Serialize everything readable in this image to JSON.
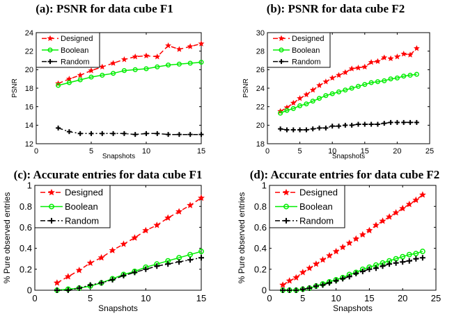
{
  "chart_data": [
    {
      "type": "line",
      "title": "(a): PSNR for data cube F1",
      "xlabel": "Snapshots",
      "ylabel": "PSNR",
      "xlim": [
        0,
        15
      ],
      "ylim": [
        12,
        24
      ],
      "xticks": [
        "0",
        "5",
        "10",
        "15"
      ],
      "yticks": [
        "12",
        "14",
        "16",
        "18",
        "20",
        "22",
        "24"
      ],
      "legend_position": "top-left",
      "grid": false,
      "x": [
        2,
        3,
        4,
        5,
        6,
        7,
        8,
        9,
        10,
        11,
        12,
        13,
        14,
        15
      ],
      "series": [
        {
          "name": "Designed",
          "color": "#ff0000",
          "marker": "star",
          "dash": "dashed",
          "values": [
            18.5,
            19.0,
            19.4,
            19.9,
            20.3,
            20.7,
            21.1,
            21.4,
            21.5,
            21.4,
            22.6,
            22.2,
            22.5,
            22.8
          ]
        },
        {
          "name": "Boolean",
          "color": "#00ee00",
          "marker": "circle",
          "dash": "solid",
          "values": [
            18.3,
            18.6,
            18.9,
            19.2,
            19.4,
            19.6,
            19.9,
            20.0,
            20.1,
            20.3,
            20.5,
            20.6,
            20.7,
            20.8
          ]
        },
        {
          "name": "Random",
          "color": "#000000",
          "marker": "plus",
          "dash": "dashdot",
          "values": [
            13.7,
            13.3,
            13.1,
            13.1,
            13.1,
            13.1,
            13.1,
            13.0,
            13.1,
            13.1,
            13.0,
            13.0,
            13.0,
            13.0
          ]
        }
      ]
    },
    {
      "type": "line",
      "title": "(b): PSNR for data cube F2",
      "xlabel": "Snapshots",
      "ylabel": "PSNR",
      "xlim": [
        0,
        25
      ],
      "ylim": [
        18,
        30
      ],
      "xticks": [
        "0",
        "5",
        "10",
        "15",
        "20",
        "25"
      ],
      "yticks": [
        "18",
        "20",
        "22",
        "24",
        "26",
        "28",
        "30"
      ],
      "legend_position": "top-left",
      "grid": false,
      "x": [
        2,
        3,
        4,
        5,
        6,
        7,
        8,
        9,
        10,
        11,
        12,
        13,
        14,
        15,
        16,
        17,
        18,
        19,
        20,
        21,
        22,
        23
      ],
      "series": [
        {
          "name": "Designed",
          "color": "#ff0000",
          "marker": "star",
          "dash": "dashed",
          "values": [
            21.5,
            21.9,
            22.4,
            22.9,
            23.3,
            23.8,
            24.3,
            24.7,
            25.1,
            25.4,
            25.7,
            26.1,
            26.2,
            26.3,
            26.8,
            26.9,
            27.3,
            27.2,
            27.4,
            27.7,
            27.6,
            28.3
          ]
        },
        {
          "name": "Boolean",
          "color": "#00ee00",
          "marker": "circle",
          "dash": "solid",
          "values": [
            21.3,
            21.6,
            21.8,
            22.1,
            22.3,
            22.6,
            22.9,
            23.2,
            23.4,
            23.6,
            23.8,
            24.0,
            24.2,
            24.4,
            24.6,
            24.7,
            24.8,
            25.0,
            25.1,
            25.3,
            25.4,
            25.5
          ]
        },
        {
          "name": "Random",
          "color": "#000000",
          "marker": "plus",
          "dash": "dashdot",
          "values": [
            19.6,
            19.5,
            19.5,
            19.5,
            19.5,
            19.6,
            19.7,
            19.7,
            19.9,
            19.9,
            20.0,
            20.0,
            20.1,
            20.1,
            20.1,
            20.1,
            20.2,
            20.3,
            20.3,
            20.3,
            20.3,
            20.3
          ]
        }
      ]
    },
    {
      "type": "line",
      "title": "(c): Accurate entries for data cube F1",
      "xlabel": "Snapshots",
      "ylabel": "% Pure observed entries",
      "xlim": [
        0,
        15
      ],
      "ylim": [
        0,
        1
      ],
      "xticks": [
        "0",
        "5",
        "10",
        "15"
      ],
      "yticks": [
        "0",
        "0.2",
        "0.4",
        "0.6",
        "0.8",
        "1"
      ],
      "legend_position": "top-left",
      "grid": false,
      "x": [
        2,
        3,
        4,
        5,
        6,
        7,
        8,
        9,
        10,
        11,
        12,
        13,
        14,
        15
      ],
      "series": [
        {
          "name": "Designed",
          "color": "#ff0000",
          "marker": "star",
          "dash": "dashed",
          "values": [
            0.07,
            0.13,
            0.19,
            0.26,
            0.31,
            0.38,
            0.44,
            0.5,
            0.57,
            0.62,
            0.69,
            0.75,
            0.81,
            0.88
          ]
        },
        {
          "name": "Boolean",
          "color": "#00ee00",
          "marker": "circle",
          "dash": "solid",
          "values": [
            0.0,
            0.01,
            0.02,
            0.04,
            0.07,
            0.11,
            0.15,
            0.18,
            0.22,
            0.25,
            0.28,
            0.31,
            0.34,
            0.37
          ]
        },
        {
          "name": "Random",
          "color": "#000000",
          "marker": "plus",
          "dash": "dashdot",
          "values": [
            0.0,
            0.0,
            0.02,
            0.05,
            0.07,
            0.1,
            0.14,
            0.17,
            0.2,
            0.23,
            0.25,
            0.27,
            0.29,
            0.31
          ]
        }
      ]
    },
    {
      "type": "line",
      "title": "(d): Accurate entries for data cube F2",
      "xlabel": "Snapshots",
      "ylabel": "% Pure observed entries",
      "xlim": [
        0,
        25
      ],
      "ylim": [
        0,
        1
      ],
      "xticks": [
        "0",
        "5",
        "10",
        "15",
        "20",
        "25"
      ],
      "yticks": [
        "0",
        "0.2",
        "0.4",
        "0.6",
        "0.8",
        "1"
      ],
      "legend_position": "top-left",
      "grid": false,
      "x": [
        2,
        3,
        4,
        5,
        6,
        7,
        8,
        9,
        10,
        11,
        12,
        13,
        14,
        15,
        16,
        17,
        18,
        19,
        20,
        21,
        22,
        23
      ],
      "series": [
        {
          "name": "Designed",
          "color": "#ff0000",
          "marker": "star",
          "dash": "dashed",
          "values": [
            0.05,
            0.09,
            0.12,
            0.17,
            0.21,
            0.25,
            0.29,
            0.33,
            0.37,
            0.41,
            0.45,
            0.49,
            0.53,
            0.57,
            0.62,
            0.66,
            0.7,
            0.74,
            0.78,
            0.82,
            0.86,
            0.91
          ]
        },
        {
          "name": "Boolean",
          "color": "#00ee00",
          "marker": "circle",
          "dash": "solid",
          "values": [
            0,
            0,
            0,
            0.01,
            0.02,
            0.04,
            0.06,
            0.08,
            0.1,
            0.12,
            0.15,
            0.17,
            0.2,
            0.22,
            0.24,
            0.26,
            0.28,
            0.3,
            0.32,
            0.34,
            0.35,
            0.37
          ]
        },
        {
          "name": "Random",
          "color": "#000000",
          "marker": "plus",
          "dash": "dashdot",
          "values": [
            0,
            0,
            0,
            0.01,
            0.02,
            0.04,
            0.05,
            0.07,
            0.09,
            0.11,
            0.13,
            0.16,
            0.18,
            0.2,
            0.21,
            0.23,
            0.25,
            0.26,
            0.27,
            0.28,
            0.3,
            0.31
          ]
        }
      ]
    }
  ]
}
